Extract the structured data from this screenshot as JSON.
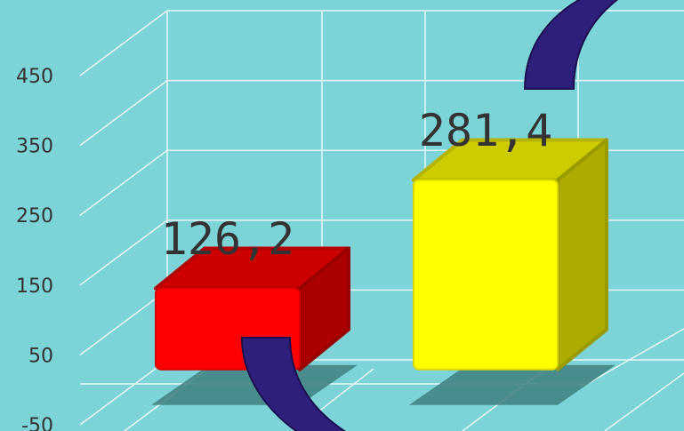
{
  "chart_data": {
    "type": "bar3d",
    "categories": [
      null,
      null
    ],
    "values": [
      126.2,
      281.4
    ],
    "value_labels": [
      "126,2",
      "281,4"
    ],
    "colors": [
      "#ff0000",
      "#ffff00"
    ],
    "ylim": [
      -50,
      450
    ],
    "yticks": [
      -50,
      50,
      150,
      250,
      350,
      450
    ],
    "grid": true
  }
}
